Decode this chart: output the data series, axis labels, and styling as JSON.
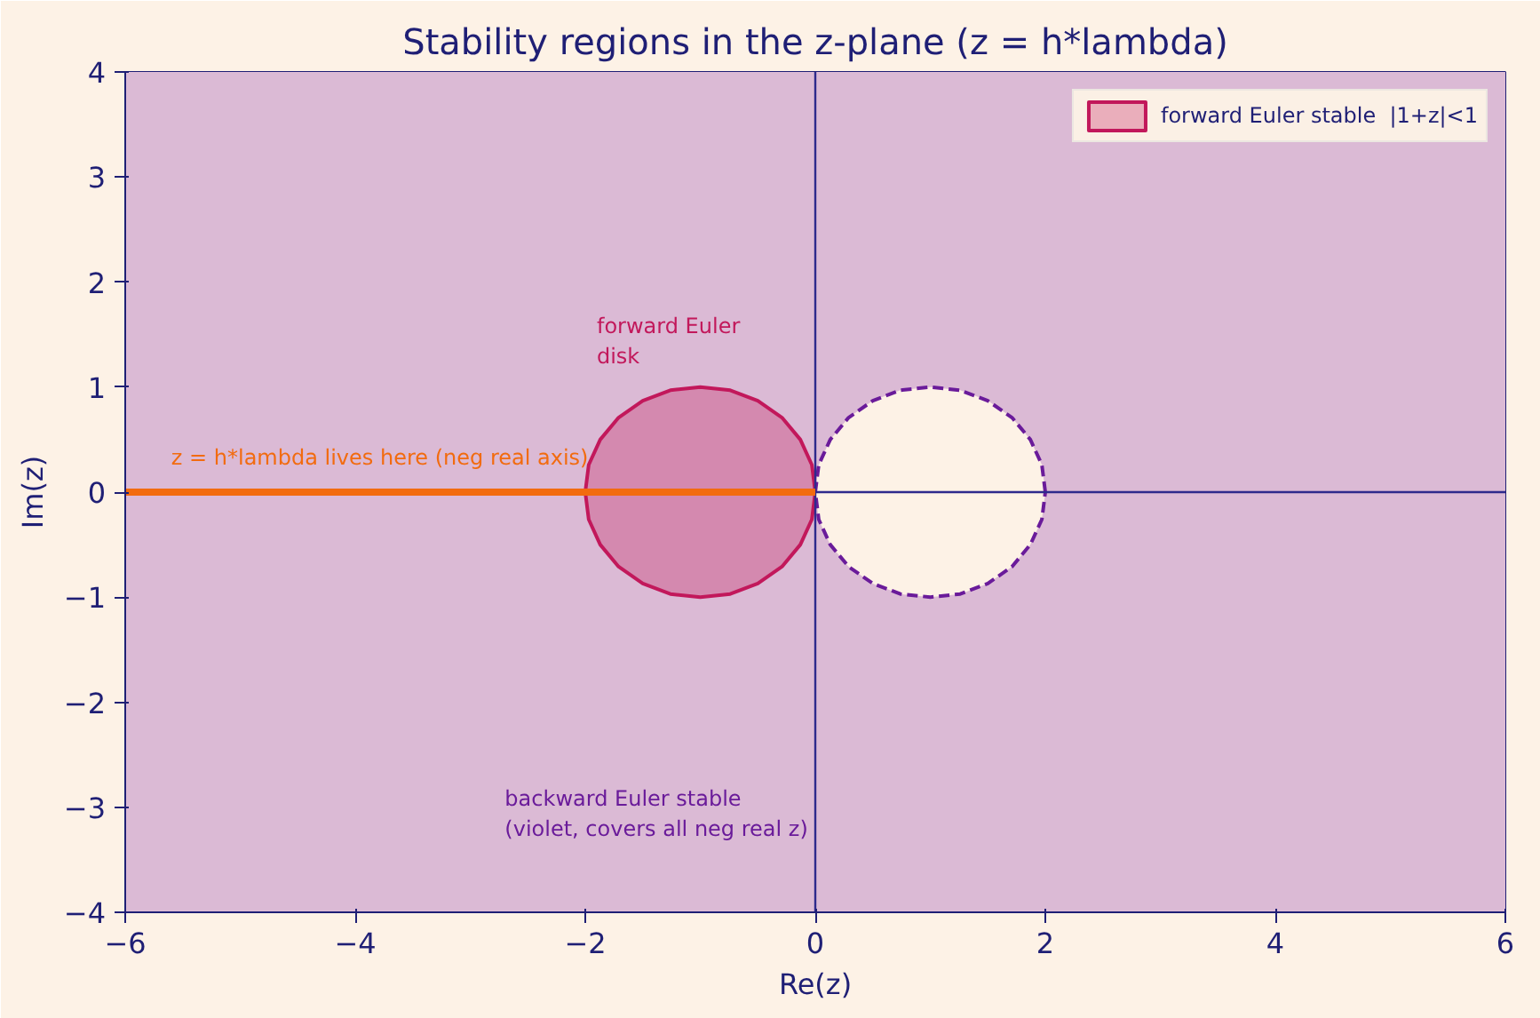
{
  "chart_data": {
    "type": "line",
    "title": "Stability regions in the z-plane (z = h*lambda)",
    "xlabel": "Re(z)",
    "ylabel": "Im(z)",
    "xlim": [
      -6,
      6
    ],
    "ylim": [
      -4,
      4
    ],
    "xticks": [
      {
        "value": -6,
        "label": "−6"
      },
      {
        "value": -4,
        "label": "−4"
      },
      {
        "value": -2,
        "label": "−2"
      },
      0,
      2,
      4,
      6
    ],
    "yticks": [
      {
        "value": -4,
        "label": "−4"
      },
      {
        "value": -3,
        "label": "−3"
      },
      {
        "value": -2,
        "label": "−2"
      },
      {
        "value": -1,
        "label": "−1"
      },
      0,
      1,
      2,
      3,
      4
    ],
    "grid": false,
    "legend": "top right",
    "marker": "none",
    "bands": [
      {
        "axis": "y",
        "from": -4,
        "to": 4,
        "color": "#dbbad5"
      }
    ],
    "series": [
      {
        "type": "area",
        "name": "forward Euler stable  |1+z|<1",
        "color": "#c2185b",
        "line_style": "solid",
        "x": [
          0,
          -0.03,
          -0.13,
          -0.29,
          -0.5,
          -0.74,
          -1,
          -1.26,
          -1.5,
          -1.71,
          -1.87,
          -1.97,
          -2,
          -1.97,
          -1.87,
          -1.71,
          -1.5,
          -1.26,
          -1,
          -0.74,
          -0.5,
          -0.29,
          -0.13,
          -0.03,
          0
        ],
        "values": [
          0,
          0.26,
          0.5,
          0.71,
          0.87,
          0.97,
          1,
          0.97,
          0.87,
          0.71,
          0.5,
          0.26,
          0,
          -0.26,
          -0.5,
          -0.71,
          -0.87,
          -0.97,
          -1,
          -0.97,
          -0.87,
          -0.71,
          -0.5,
          -0.26,
          0
        ]
      },
      {
        "type": "area",
        "color": "#6a1b9a",
        "line_style": "dashed",
        "x": [
          2,
          1.97,
          1.87,
          1.71,
          1.5,
          1.26,
          1,
          0.74,
          0.5,
          0.29,
          0.13,
          0.03,
          0,
          0.03,
          0.13,
          0.29,
          0.5,
          0.74,
          1,
          1.26,
          1.5,
          1.71,
          1.87,
          1.97,
          2
        ],
        "values": [
          0,
          0.26,
          0.5,
          0.71,
          0.87,
          0.97,
          1,
          0.97,
          0.87,
          0.71,
          0.5,
          0.26,
          0,
          -0.26,
          -0.5,
          -0.71,
          -0.87,
          -0.97,
          -1,
          -0.97,
          -0.87,
          -0.71,
          -0.5,
          -0.26,
          0
        ]
      },
      {
        "color": "#2e2a8c",
        "x": [
          0,
          0
        ],
        "values": [
          -4,
          4
        ]
      },
      {
        "color": "#2e2a8c",
        "x": [
          0,
          6
        ],
        "values": [
          0,
          0
        ]
      },
      {
        "color": "#f26b0f",
        "line_style": "solid",
        "x": [
          -6,
          0
        ],
        "values": [
          0,
          0
        ]
      }
    ],
    "annotations": [
      "forward Euler\ndisk",
      "z = h*lambda lives here (neg real axis)",
      "backward Euler stable\n(violet, covers all neg real z)"
    ]
  }
}
